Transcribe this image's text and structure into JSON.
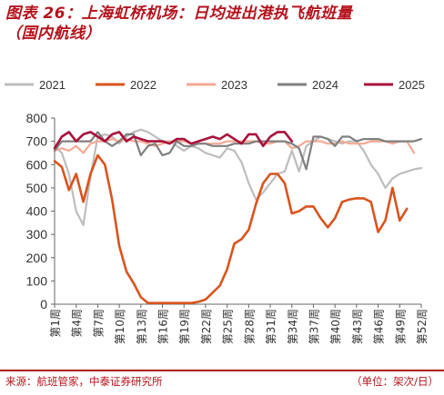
{
  "header": {
    "title": "图表 26：上海虹桥机场：日均进出港执飞航班量",
    "subtitle": "（国内航线）"
  },
  "footer": {
    "source": "来源：航班管家，中泰证券研究所",
    "unit": "（单位：架次/日）"
  },
  "chart_data": {
    "type": "line",
    "title": "",
    "xlabel": "",
    "ylabel": "",
    "ylim": [
      0,
      800
    ],
    "yticks": [
      0,
      100,
      200,
      300,
      400,
      500,
      600,
      700,
      800
    ],
    "grid": false,
    "legend_position": "top",
    "x": [
      1,
      2,
      3,
      4,
      5,
      6,
      7,
      8,
      9,
      10,
      11,
      12,
      13,
      14,
      15,
      16,
      17,
      18,
      19,
      20,
      21,
      22,
      23,
      24,
      25,
      26,
      27,
      28,
      29,
      30,
      31,
      32,
      33,
      34,
      35,
      36,
      37,
      38,
      39,
      40,
      41,
      42,
      43,
      44,
      45,
      46,
      47,
      48,
      49,
      50,
      51,
      52
    ],
    "xtick_labels": [
      "第1周",
      "第4周",
      "第7周",
      "第10周",
      "第13周",
      "第16周",
      "第19周",
      "第22周",
      "第25周",
      "第28周",
      "第31周",
      "第34周",
      "第37周",
      "第40周",
      "第43周",
      "第46周",
      "第49周",
      "第52周"
    ],
    "xtick_positions": [
      1,
      4,
      7,
      10,
      13,
      16,
      19,
      22,
      25,
      28,
      31,
      34,
      37,
      40,
      43,
      46,
      49,
      52
    ],
    "series": [
      {
        "name": "2021",
        "color": "#bdbdbd",
        "values": [
          680,
          650,
          560,
          400,
          340,
          550,
          720,
          730,
          720,
          690,
          720,
          740,
          750,
          740,
          720,
          700,
          700,
          680,
          660,
          680,
          670,
          650,
          640,
          630,
          670,
          660,
          610,
          520,
          450,
          480,
          520,
          560,
          570,
          660,
          570,
          680,
          700,
          720,
          710,
          700,
          690,
          700,
          700,
          660,
          600,
          560,
          500,
          540,
          560,
          570,
          580,
          585
        ]
      },
      {
        "name": "2022",
        "color": "#d9541e",
        "values": [
          615,
          590,
          490,
          560,
          440,
          560,
          640,
          600,
          450,
          250,
          140,
          90,
          30,
          5,
          5,
          5,
          5,
          5,
          5,
          5,
          10,
          20,
          50,
          80,
          150,
          260,
          280,
          320,
          430,
          520,
          560,
          560,
          520,
          390,
          400,
          420,
          420,
          370,
          330,
          370,
          440,
          450,
          455,
          455,
          440,
          310,
          360,
          500,
          360,
          410,
          null,
          null
        ]
      },
      {
        "name": "2023",
        "color": "#f4a994",
        "values": [
          660,
          670,
          660,
          680,
          650,
          690,
          700,
          700,
          710,
          700,
          710,
          700,
          700,
          690,
          680,
          690,
          700,
          700,
          700,
          690,
          690,
          690,
          690,
          690,
          700,
          700,
          700,
          700,
          700,
          690,
          690,
          700,
          700,
          670,
          680,
          700,
          700,
          700,
          690,
          690,
          700,
          690,
          690,
          690,
          700,
          700,
          700,
          690,
          700,
          700,
          650,
          null
        ]
      },
      {
        "name": "2024",
        "color": "#7f7f7f",
        "values": [
          660,
          700,
          700,
          700,
          700,
          700,
          740,
          700,
          680,
          700,
          730,
          730,
          640,
          680,
          690,
          640,
          650,
          700,
          680,
          680,
          690,
          690,
          680,
          680,
          680,
          690,
          690,
          690,
          700,
          700,
          700,
          700,
          700,
          690,
          670,
          580,
          720,
          720,
          710,
          680,
          720,
          720,
          700,
          710,
          710,
          710,
          700,
          700,
          700,
          700,
          700,
          710
        ]
      },
      {
        "name": "2025",
        "color": "#a8123b",
        "values": [
          670,
          720,
          740,
          700,
          730,
          740,
          720,
          700,
          730,
          740,
          700,
          720,
          710,
          700,
          700,
          700,
          690,
          710,
          710,
          690,
          700,
          710,
          720,
          710,
          730,
          710,
          690,
          730,
          730,
          680,
          720,
          740,
          740,
          700,
          null,
          null,
          null,
          null,
          null,
          null,
          null,
          null,
          null,
          null,
          null,
          null,
          null,
          null,
          null,
          null,
          null,
          null
        ]
      }
    ]
  }
}
